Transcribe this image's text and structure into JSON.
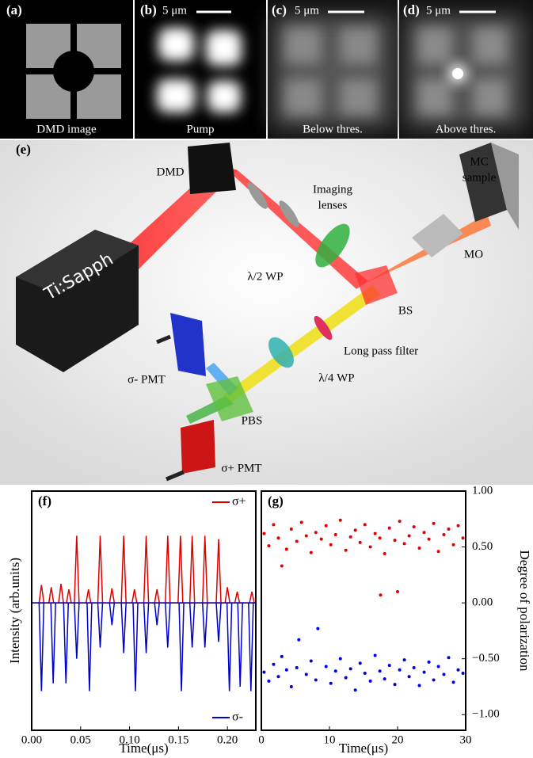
{
  "panels": [
    {
      "label": "(a)",
      "caption": "DMD image"
    },
    {
      "label": "(b)",
      "caption": "Pump",
      "scale_bar": "5 μm"
    },
    {
      "label": "(c)",
      "caption": "Below thres.",
      "scale_bar": "5 μm"
    },
    {
      "label": "(d)",
      "caption": "Above thres.",
      "scale_bar": "5 μm"
    }
  ],
  "setup": {
    "label": "(e)",
    "dmd": "DMD",
    "imaging_lenses": [
      "Imaging",
      "lenses"
    ],
    "mc_sample": [
      "MC",
      "sample"
    ],
    "laser": "Ti:Sapph",
    "mo": "MO",
    "half_wp": "λ/2 WP",
    "bs": "BS",
    "filter": "Long pass filter",
    "pmt_minus": "σ- PMT",
    "quarter_wp": "λ/4 WP",
    "pbs": "PBS",
    "pmt_plus": "σ+ PMT"
  },
  "chart_data": [
    {
      "type": "spike",
      "label": "(f)",
      "xlabel": "Time(μs)",
      "ylabel": "Intensity (arb.units)",
      "xlim": [
        0,
        0.229
      ],
      "ylim": [
        -1.14,
        1
      ],
      "xticks": [
        {
          "value": 0,
          "label": "0.00"
        },
        0.05,
        {
          "value": 0.1,
          "label": "0.10"
        },
        0.15,
        {
          "value": 0.2,
          "label": "0.20"
        }
      ],
      "series": [
        {
          "name": "σ+",
          "color": "#e00000",
          "legend": "upper right",
          "x": [
            0.01,
            0.02,
            0.03,
            0.038,
            0.046,
            0.058,
            0.07,
            0.082,
            0.094,
            0.105,
            0.117,
            0.128,
            0.139,
            0.152,
            0.164,
            0.177,
            0.191,
            0.2,
            0.21,
            0.225
          ],
          "values": [
            0.16,
            0.14,
            0.17,
            0.12,
            0.6,
            0.12,
            0.6,
            0.13,
            0.6,
            0.12,
            0.6,
            0.12,
            0.6,
            0.6,
            0.6,
            0.6,
            0.57,
            0.14,
            0.1,
            0.1
          ]
        },
        {
          "name": "σ-",
          "color": "#0000cc",
          "legend": "lower right",
          "x": [
            0.01,
            0.022,
            0.035,
            0.046,
            0.059,
            0.07,
            0.082,
            0.094,
            0.106,
            0.117,
            0.128,
            0.139,
            0.153,
            0.164,
            0.177,
            0.191,
            0.202,
            0.213,
            0.224
          ],
          "values": [
            -0.79,
            -0.72,
            -0.72,
            -0.5,
            -0.79,
            -0.4,
            -0.2,
            -0.45,
            -0.79,
            -0.45,
            -0.2,
            -0.4,
            -0.79,
            -0.4,
            -0.4,
            -0.35,
            -0.79,
            -0.75,
            -0.79
          ]
        }
      ]
    },
    {
      "type": "scatter",
      "label": "(g)",
      "xlabel": "Time(μs)",
      "ylabel": "Degree of polarization",
      "y_axis": "right",
      "xlim": [
        0,
        30
      ],
      "ylim": [
        -1.14,
        1
      ],
      "xticks": [
        0,
        10,
        20,
        30
      ],
      "yticks": [
        {
          "value": 1,
          "label": "1.00"
        },
        {
          "value": 0.5,
          "label": "0.50"
        },
        {
          "value": 0,
          "label": "0.00"
        },
        {
          "value": -0.5,
          "label": "−0.50"
        },
        {
          "value": -1,
          "label": "−1.00"
        }
      ],
      "series": [
        {
          "color": "#e00000",
          "x": [
            0.4,
            1.1,
            1.8,
            2.5,
            3.0,
            3.7,
            4.4,
            5.2,
            5.9,
            6.6,
            7.3,
            8.0,
            8.8,
            9.5,
            10.2,
            10.9,
            11.6,
            12.4,
            13.1,
            13.8,
            14.5,
            15.2,
            16.0,
            16.7,
            17.4,
            17.5,
            18.1,
            18.8,
            19.6,
            20.0,
            20.3,
            21.0,
            21.7,
            22.4,
            23.2,
            23.9,
            24.6,
            25.3,
            26.0,
            26.8,
            27.5,
            28.2,
            28.9,
            29.6
          ],
          "values": [
            0.62,
            0.51,
            0.7,
            0.58,
            0.33,
            0.48,
            0.66,
            0.55,
            0.72,
            0.6,
            0.45,
            0.63,
            0.57,
            0.69,
            0.52,
            0.61,
            0.74,
            0.47,
            0.59,
            0.65,
            0.54,
            0.7,
            0.5,
            0.62,
            0.58,
            0.07,
            0.44,
            0.67,
            0.56,
            0.1,
            0.73,
            0.53,
            0.6,
            0.68,
            0.49,
            0.63,
            0.57,
            0.71,
            0.46,
            0.61,
            0.66,
            0.52,
            0.69,
            0.58
          ]
        },
        {
          "color": "#0000dd",
          "x": [
            0.4,
            1.1,
            1.8,
            2.5,
            3.0,
            3.7,
            4.4,
            5.2,
            5.5,
            6.6,
            7.3,
            8.0,
            8.3,
            9.5,
            10.2,
            10.9,
            11.6,
            12.4,
            13.1,
            13.8,
            14.5,
            15.2,
            16.0,
            16.7,
            17.4,
            18.1,
            18.8,
            19.6,
            20.3,
            21.0,
            21.7,
            22.4,
            23.2,
            23.9,
            24.6,
            25.3,
            26.0,
            26.8,
            27.5,
            28.2,
            28.9,
            29.6
          ],
          "values": [
            -0.62,
            -0.7,
            -0.55,
            -0.66,
            -0.48,
            -0.6,
            -0.75,
            -0.58,
            -0.33,
            -0.64,
            -0.52,
            -0.69,
            -0.23,
            -0.57,
            -0.72,
            -0.61,
            -0.5,
            -0.67,
            -0.59,
            -0.78,
            -0.54,
            -0.63,
            -0.7,
            -0.47,
            -0.61,
            -0.68,
            -0.56,
            -0.73,
            -0.6,
            -0.51,
            -0.66,
            -0.58,
            -0.74,
            -0.62,
            -0.53,
            -0.69,
            -0.57,
            -0.64,
            -0.49,
            -0.71,
            -0.6,
            -0.63
          ]
        }
      ]
    }
  ]
}
